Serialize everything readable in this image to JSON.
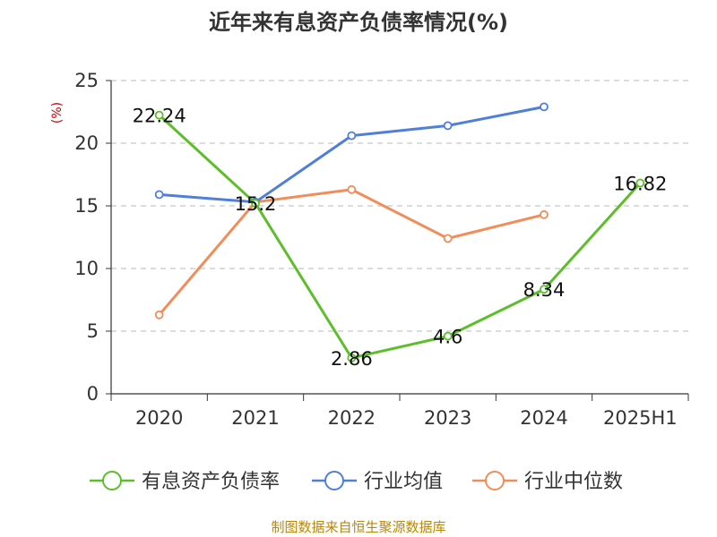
{
  "chart_data": {
    "type": "line",
    "title": "近年来有息资产负债率情况(%)",
    "unit_label": "(%)",
    "categories": [
      "2020",
      "2021",
      "2022",
      "2023",
      "2024",
      "2025H1"
    ],
    "ylim": [
      0,
      25
    ],
    "yticks": [
      "0",
      "5",
      "10",
      "15",
      "20",
      "25"
    ],
    "grid": true,
    "legend_position": "bottom",
    "series": [
      {
        "name": "有息资产负债率",
        "color": "#5cbf2a",
        "values": [
          22.24,
          15.2,
          2.86,
          4.6,
          8.34,
          16.82
        ],
        "labels": [
          "22.24",
          "15.2",
          "2.86",
          "4.6",
          "8.34",
          "16.82"
        ]
      },
      {
        "name": "行业均值",
        "color": "#4f7fd9",
        "values": [
          15.9,
          15.3,
          20.6,
          21.4,
          22.9,
          null
        ],
        "labels": null
      },
      {
        "name": "行业中位数",
        "color": "#f28c58",
        "values": [
          6.3,
          15.3,
          16.3,
          12.4,
          14.3,
          null
        ],
        "labels": null
      }
    ],
    "source": "制图数据来自恒生聚源数据库"
  }
}
